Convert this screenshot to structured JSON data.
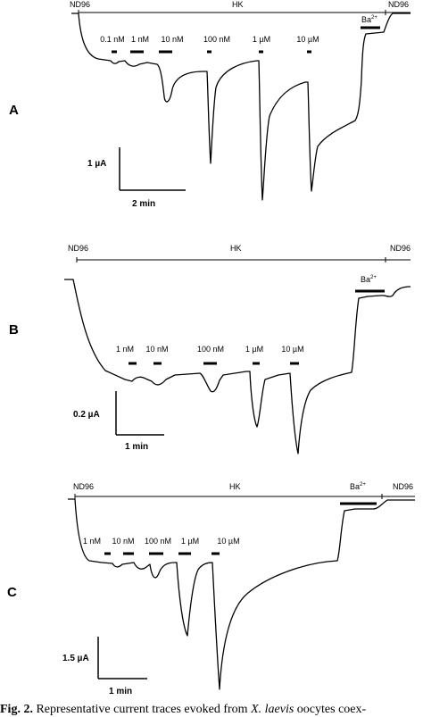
{
  "panels": [
    {
      "label": "A",
      "solution_left": "ND96",
      "solution_mid": "HK",
      "solution_right": "ND96",
      "blocker": "Ba",
      "blocker_sup": "2+",
      "concentrations": [
        "0.1 nM",
        "1 nM",
        "10 nM",
        "100 nM",
        "1 µM",
        "10 µM"
      ],
      "scale_current": "1 µA",
      "scale_time": "2 min"
    },
    {
      "label": "B",
      "solution_left": "ND96",
      "solution_mid": "HK",
      "solution_right": "ND96",
      "blocker": "Ba",
      "blocker_sup": "2+",
      "concentrations": [
        "1 nM",
        "10 nM",
        "100 nM",
        "1 µM",
        "10 µM"
      ],
      "scale_current": "0.2 µA",
      "scale_time": "1 min"
    },
    {
      "label": "C",
      "solution_left": "ND96",
      "solution_mid": "HK",
      "solution_right": "ND96",
      "blocker": "Ba",
      "blocker_sup": "2+",
      "concentrations": [
        "1 nM",
        "10 nM",
        "100 nM",
        "1 µM",
        "10 µM"
      ],
      "scale_current": "1.5 µA",
      "scale_time": "1 min"
    }
  ],
  "caption": {
    "fig_label": "Fig. 2.",
    "text_before": "Representative current traces evoked from",
    "species": "X. laevis",
    "text_after": "oocytes coex-"
  }
}
